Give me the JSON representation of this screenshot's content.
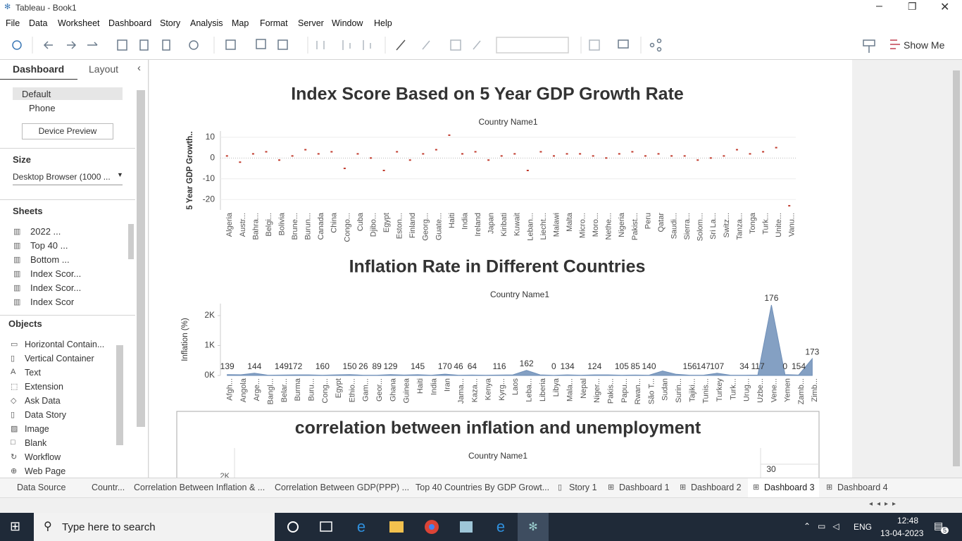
{
  "window": {
    "title": "Tableau - Book1"
  },
  "menu": [
    "File",
    "Data",
    "Worksheet",
    "Dashboard",
    "Story",
    "Analysis",
    "Map",
    "Format",
    "Server",
    "Window",
    "Help"
  ],
  "toolbar": {
    "show_me": "Show Me"
  },
  "side_panel": {
    "tabs": [
      "Dashboard",
      "Layout"
    ],
    "devices": [
      "Default",
      "Phone"
    ],
    "device_preview": "Device Preview",
    "size_heading": "Size",
    "size_value": "Desktop Browser (1000 ...",
    "sheets_heading": "Sheets",
    "sheets": [
      "2022 ...",
      "Top 40 ...",
      "Bottom ...",
      "Index Scor...",
      "Index Scor...",
      "Index Scor"
    ],
    "objects_heading": "Objects",
    "objects": [
      "Horizontal Contain...",
      "Vertical Container",
      "Text",
      "Extension",
      "Ask Data",
      "Data Story",
      "Image",
      "Blank",
      "Workflow",
      "Web Page"
    ]
  },
  "dashboard": {
    "charts": [
      {
        "type": "scatter",
        "title": "Index Score Based on 5 Year GDP Growth Rate",
        "header": "Country Name1",
        "y_label": "5 Year GDP Growth..",
        "categories": [
          "Algeria",
          "Austr...",
          "Bahra...",
          "Belgi...",
          "Bolivia",
          "Brune...",
          "Burun...",
          "Canada",
          "China",
          "Congo...",
          "Cuba",
          "Djibo...",
          "Egypt",
          "Eston...",
          "Finland",
          "Georg...",
          "Guate...",
          "Haiti",
          "India",
          "Ireland",
          "Japan",
          "Kiribati",
          "Kuwait",
          "Leban...",
          "Liecht...",
          "Malawi",
          "Malta",
          "Micro...",
          "Moro...",
          "Nethe...",
          "Nigeria",
          "Pakist...",
          "Peru",
          "Qatar",
          "Saudi...",
          "Sierra...",
          "Solom...",
          "Sri La...",
          "Switz...",
          "Tanza...",
          "Tonga",
          "Turk...",
          "Unite...",
          "Vanu..."
        ],
        "series": [
          {
            "color": "#c0392b",
            "values": [
              1,
              -2,
              2,
              3,
              -1,
              1,
              4,
              2,
              3,
              -5,
              2,
              0,
              -6,
              3,
              -1,
              2,
              4,
              11,
              2,
              3,
              -1,
              1,
              2,
              -6,
              3,
              1,
              2,
              2,
              1,
              0,
              2,
              3,
              1,
              2,
              1,
              1,
              -1,
              0,
              1,
              4,
              2,
              3,
              5,
              -23
            ]
          }
        ],
        "ylim": [
          -25,
          13
        ],
        "yticks": [
          -20,
          -10,
          0,
          10
        ],
        "grid": true
      },
      {
        "type": "area",
        "title": "Inflation Rate in Different Countries",
        "header": "Country Name1",
        "y_label": "Inflation (%)",
        "categories": [
          "Afgh...",
          "Angola",
          "Arge...",
          "Bangl...",
          "Belar...",
          "Burma",
          "Buru...",
          "Cong...",
          "Egypt",
          "Ethio...",
          "Gam...",
          "Geor...",
          "Ghana",
          "Guinea",
          "Haiti",
          "India",
          "Iran",
          "Jama...",
          "Kaza...",
          "Kenya",
          "Kyrg...",
          "Laos",
          "Leba...",
          "Liberia",
          "Libya",
          "Mala...",
          "Nepal",
          "Niger...",
          "Pakis...",
          "Papu...",
          "Rwan...",
          "São T...",
          "Sudan",
          "Surin...",
          "Tajiki...",
          "Tunis...",
          "Turkey",
          "Turk...",
          "Urug...",
          "Uzbe...",
          "Vene...",
          "Yemen",
          "Zamb...",
          "Zimb..."
        ],
        "series": [
          {
            "color": "#6f8fb8",
            "values": [
              30,
              25,
              75,
              10,
              15,
              20,
              20,
              10,
              20,
              30,
              10,
              10,
              30,
              15,
              25,
              10,
              45,
              10,
              15,
              10,
              15,
              20,
              170,
              20,
              5,
              20,
              10,
              20,
              20,
              10,
              15,
              10,
              150,
              40,
              10,
              10,
              75,
              10,
              10,
              15,
              2355,
              30,
              15,
              560
            ],
            "point_labels": [
              139,
              null,
              144,
              null,
              149,
              172,
              null,
              160,
              null,
              150,
              26,
              89,
              129,
              null,
              145,
              null,
              170,
              46,
              64,
              null,
              116,
              null,
              162,
              null,
              0,
              134,
              null,
              124,
              null,
              105,
              85,
              140,
              null,
              null,
              156,
              147,
              107,
              null,
              34,
              117,
              176,
              0,
              154,
              173
            ]
          }
        ],
        "ylim": [
          0,
          2400
        ],
        "yticks": [
          {
            "value": 0,
            "label": "0K"
          },
          {
            "value": 1000,
            "label": "1K"
          },
          {
            "value": 2000,
            "label": "2K"
          }
        ]
      },
      {
        "type": "partial",
        "title": "correlation between inflation and unemployment",
        "header": "Country Name1",
        "visible_texts": [
          "2K",
          "30"
        ]
      }
    ]
  },
  "sheet_tabs": [
    "Data Source",
    "Countr...",
    "Correlation Between Inflation & ...",
    "Correlation Between GDP(PPP) ...",
    "Top 40 Countries By GDP Growt...",
    "Story 1",
    "Dashboard 1",
    "Dashboard 2",
    "Dashboard 3",
    "Dashboard 4"
  ],
  "taskbar": {
    "search": "Type here to search",
    "language": "ENG",
    "time": "12:48",
    "date": "13-04-2023",
    "notifications": "5"
  }
}
